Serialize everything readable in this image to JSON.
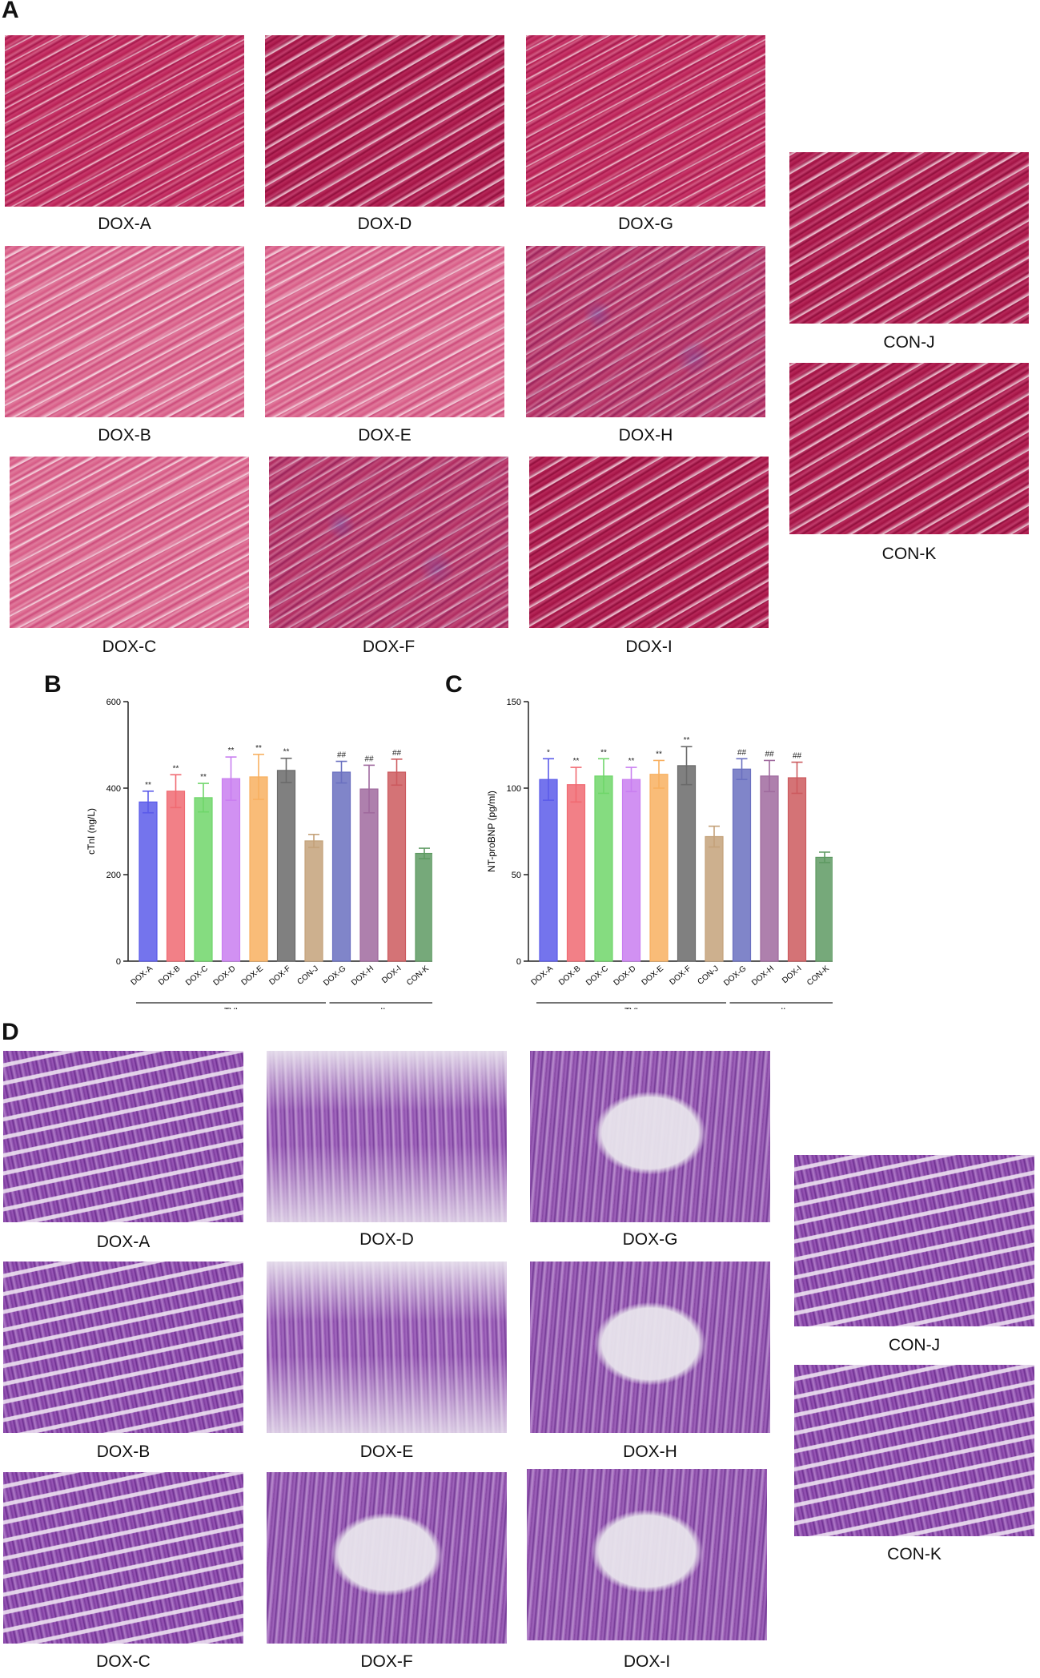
{
  "figure": {
    "panel_A": {
      "letter": "A",
      "tiles": [
        {
          "label": "DOX-A"
        },
        {
          "label": "DOX-D"
        },
        {
          "label": "DOX-G"
        },
        {
          "label": "DOX-B"
        },
        {
          "label": "DOX-E"
        },
        {
          "label": "DOX-H"
        },
        {
          "label": "DOX-C"
        },
        {
          "label": "DOX-F"
        },
        {
          "label": "DOX-I"
        },
        {
          "label": "CON-J"
        },
        {
          "label": "CON-K"
        }
      ]
    },
    "panel_B": {
      "letter": "B"
    },
    "panel_C": {
      "letter": "C"
    },
    "panel_D": {
      "letter": "D",
      "tiles": [
        {
          "label": "DOX-A"
        },
        {
          "label": "DOX-D"
        },
        {
          "label": "DOX-G"
        },
        {
          "label": "DOX-B"
        },
        {
          "label": "DOX-E"
        },
        {
          "label": "DOX-H"
        },
        {
          "label": "DOX-C"
        },
        {
          "label": "DOX-F"
        },
        {
          "label": "DOX-I"
        },
        {
          "label": "CON-J"
        },
        {
          "label": "CON-K"
        }
      ]
    }
  },
  "chart_data": [
    {
      "type": "bar",
      "panel": "B",
      "ylabel": "cTnI (ng/L)",
      "ylim": [
        0,
        600
      ],
      "yticks": [
        0,
        200,
        400,
        600
      ],
      "categories": [
        "DOX-A",
        "DOX-B",
        "DOX-C",
        "DOX-D",
        "DOX-E",
        "DOX-F",
        "CON-J",
        "DOX-G",
        "DOX-H",
        "DOX-I",
        "CON-K"
      ],
      "values": [
        368,
        393,
        378,
        422,
        426,
        441,
        278,
        437,
        398,
        437,
        249
      ],
      "errors": [
        25,
        38,
        33,
        50,
        52,
        28,
        15,
        25,
        55,
        30,
        12
      ],
      "annotations": [
        "**",
        "**",
        "**",
        "**",
        "**",
        "**",
        "",
        "##",
        "##",
        "##",
        ""
      ],
      "groups": [
        {
          "label": "TVI"
        },
        {
          "label": "II"
        }
      ],
      "colors": [
        "#5b5bea",
        "#f06a72",
        "#6fd66a",
        "#c97ef0",
        "#f8b060",
        "#6a6a6a",
        "#c4a27a",
        "#6a70c0",
        "#a06a9e",
        "#cc5a5e",
        "#5e9a62"
      ]
    },
    {
      "type": "bar",
      "panel": "C",
      "ylabel": "NT-proBNP (pg/ml)",
      "ylim": [
        0,
        150
      ],
      "yticks": [
        0,
        50,
        100,
        150
      ],
      "categories": [
        "DOX-A",
        "DOX-B",
        "DOX-C",
        "DOX-D",
        "DOX-E",
        "DOX-F",
        "CON-J",
        "DOX-G",
        "DOX-H",
        "DOX-I",
        "CON-K"
      ],
      "values": [
        105,
        102,
        107,
        105,
        108,
        113,
        72,
        111,
        107,
        106,
        60
      ],
      "errors": [
        12,
        10,
        10,
        7,
        8,
        11,
        6,
        6,
        9,
        9,
        3
      ],
      "annotations": [
        "*",
        "**",
        "**",
        "**",
        "**",
        "**",
        "",
        "##",
        "##",
        "##",
        ""
      ],
      "groups": [
        {
          "label": "TVI"
        },
        {
          "label": "II"
        }
      ],
      "colors": [
        "#5b5bea",
        "#f06a72",
        "#6fd66a",
        "#c97ef0",
        "#f8b060",
        "#6a6a6a",
        "#c4a27a",
        "#6a70c0",
        "#a06a9e",
        "#cc5a5e",
        "#5e9a62"
      ]
    }
  ]
}
